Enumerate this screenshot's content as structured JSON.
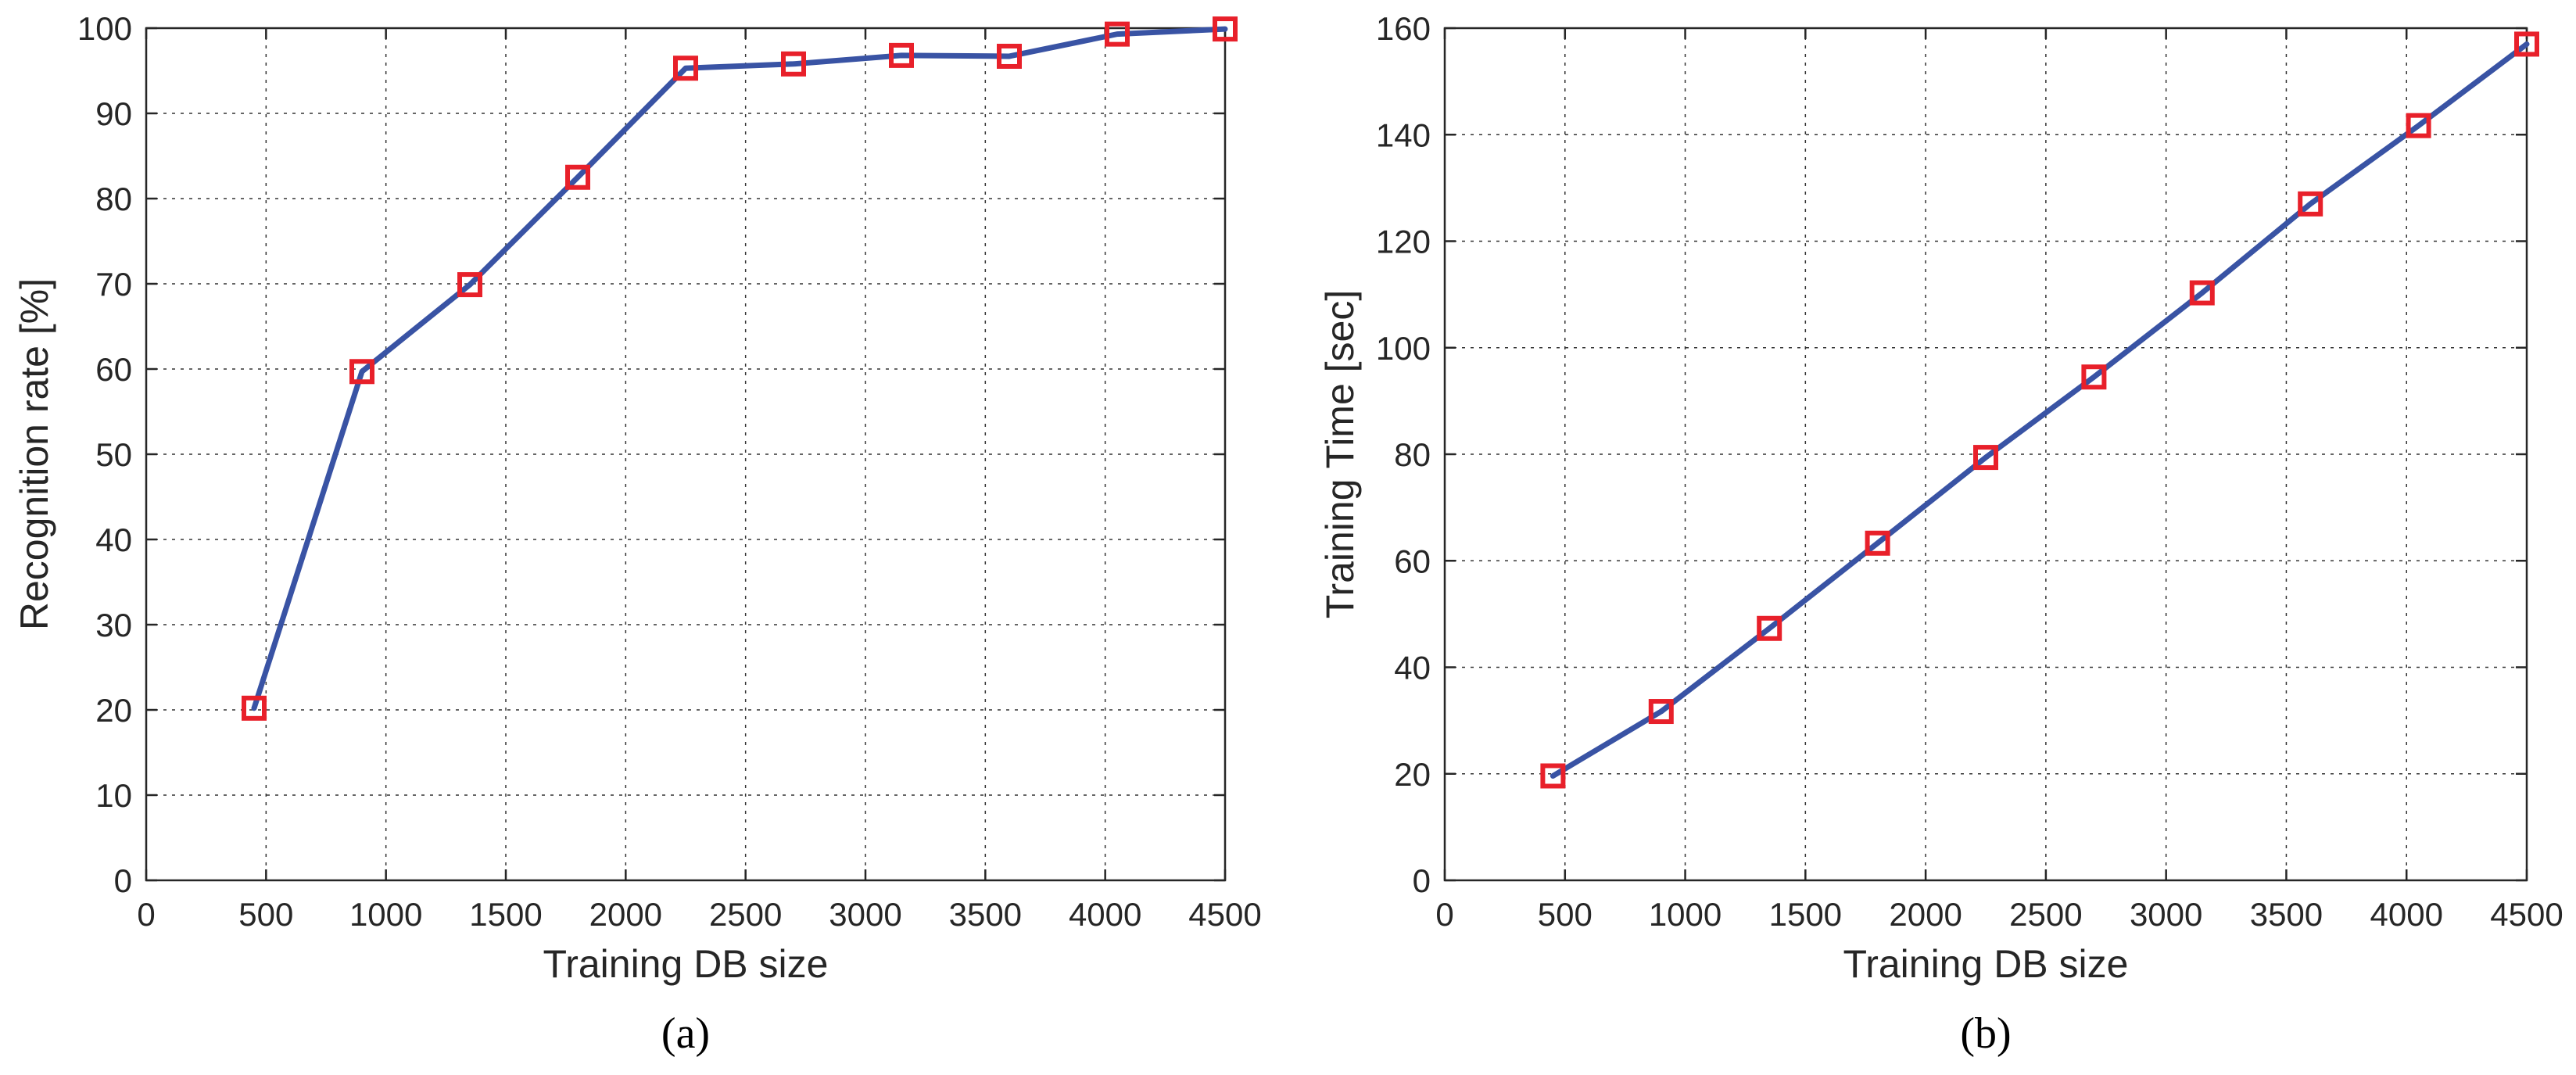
{
  "chart_data": [
    {
      "type": "line",
      "caption": "(a)",
      "xlabel": "Training DB size",
      "ylabel": "Recognition rate [%]",
      "xlim": [
        0,
        4500
      ],
      "ylim": [
        0,
        100
      ],
      "xticks": [
        0,
        500,
        1000,
        1500,
        2000,
        2500,
        3000,
        3500,
        4000,
        4500
      ],
      "yticks": [
        0,
        10,
        20,
        30,
        40,
        50,
        60,
        70,
        80,
        90,
        100
      ],
      "grid": true,
      "x": [
        450,
        900,
        1350,
        1800,
        2250,
        2700,
        3150,
        3600,
        4050,
        4500
      ],
      "series": [
        {
          "values": [
            20.2,
            59.7,
            69.9,
            82.5,
            95.3,
            95.8,
            96.8,
            96.7,
            99.3,
            99.9
          ]
        }
      ]
    },
    {
      "type": "line",
      "caption": "(b)",
      "xlabel": "Training DB size",
      "ylabel": "Training Time [sec]",
      "xlim": [
        0,
        4500
      ],
      "ylim": [
        0,
        160
      ],
      "xticks": [
        0,
        500,
        1000,
        1500,
        2000,
        2500,
        3000,
        3500,
        4000,
        4500
      ],
      "yticks": [
        0,
        20,
        40,
        60,
        80,
        100,
        120,
        140,
        160
      ],
      "grid": true,
      "x": [
        450,
        900,
        1350,
        1800,
        2250,
        2700,
        3150,
        3600,
        4050,
        4500
      ],
      "series": [
        {
          "values": [
            19.6,
            31.7,
            47.3,
            63.3,
            79.4,
            94.5,
            110.3,
            127.0,
            141.7,
            157.0
          ]
        }
      ]
    }
  ],
  "style": {
    "line_color": "#3953a4",
    "marker_color": "#e8202a"
  }
}
